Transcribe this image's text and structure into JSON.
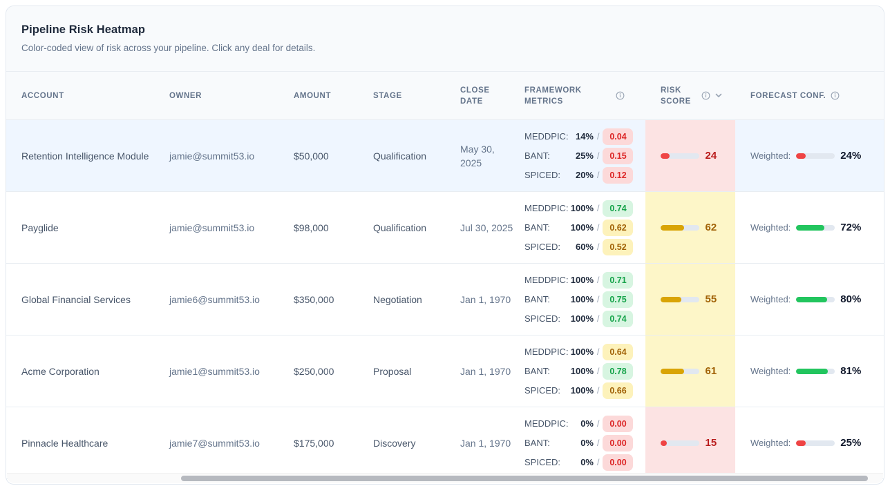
{
  "panel": {
    "title": "Pipeline Risk Heatmap",
    "subtitle": "Color-coded view of risk across your pipeline. Click any deal for details."
  },
  "table": {
    "columns": [
      {
        "id": "account",
        "label": "ACCOUNT",
        "info": false,
        "sort": false
      },
      {
        "id": "owner",
        "label": "OWNER",
        "info": false,
        "sort": false
      },
      {
        "id": "amount",
        "label": "AMOUNT",
        "info": false,
        "sort": false
      },
      {
        "id": "stage",
        "label": "STAGE",
        "info": false,
        "sort": false
      },
      {
        "id": "close_date",
        "label": "CLOSE DATE",
        "info": false,
        "sort": false
      },
      {
        "id": "framework_metrics",
        "label": "FRAMEWORK METRICS",
        "info": true,
        "sort": false
      },
      {
        "id": "risk_score",
        "label": "RISK SCORE",
        "info": true,
        "sort": true
      },
      {
        "id": "forecast_conf",
        "label": "FORECAST CONF.",
        "info": true,
        "sort": false
      }
    ],
    "rows": [
      {
        "account": "Retention Intelligence Module",
        "owner": "jamie@summit53.io",
        "amount": "$50,000",
        "stage": "Qualification",
        "close_date": "May 30, 2025",
        "selected": true,
        "metrics": [
          {
            "label": "MEDDPIC:",
            "pct": "14%",
            "score": "0.04",
            "tone": "red"
          },
          {
            "label": "BANT:",
            "pct": "25%",
            "score": "0.15",
            "tone": "red"
          },
          {
            "label": "SPICED:",
            "pct": "20%",
            "score": "0.12",
            "tone": "red"
          }
        ],
        "risk": {
          "value": 24,
          "tone": "red"
        },
        "forecast": {
          "label": "Weighted:",
          "pct": 24,
          "display": "24%",
          "tone": "red"
        }
      },
      {
        "account": "Payglide",
        "owner": "jamie@summit53.io",
        "amount": "$98,000",
        "stage": "Qualification",
        "close_date": "Jul 30, 2025",
        "selected": false,
        "metrics": [
          {
            "label": "MEDDPIC:",
            "pct": "100%",
            "score": "0.74",
            "tone": "green"
          },
          {
            "label": "BANT:",
            "pct": "100%",
            "score": "0.62",
            "tone": "yellow"
          },
          {
            "label": "SPICED:",
            "pct": "60%",
            "score": "0.52",
            "tone": "yellow"
          }
        ],
        "risk": {
          "value": 62,
          "tone": "yellow"
        },
        "forecast": {
          "label": "Weighted:",
          "pct": 72,
          "display": "72%",
          "tone": "green"
        }
      },
      {
        "account": "Global Financial Services",
        "owner": "jamie6@summit53.io",
        "amount": "$350,000",
        "stage": "Negotiation",
        "close_date": "Jan 1, 1970",
        "selected": false,
        "metrics": [
          {
            "label": "MEDDPIC:",
            "pct": "100%",
            "score": "0.71",
            "tone": "green"
          },
          {
            "label": "BANT:",
            "pct": "100%",
            "score": "0.75",
            "tone": "green"
          },
          {
            "label": "SPICED:",
            "pct": "100%",
            "score": "0.74",
            "tone": "green"
          }
        ],
        "risk": {
          "value": 55,
          "tone": "yellow"
        },
        "forecast": {
          "label": "Weighted:",
          "pct": 80,
          "display": "80%",
          "tone": "green"
        }
      },
      {
        "account": "Acme Corporation",
        "owner": "jamie1@summit53.io",
        "amount": "$250,000",
        "stage": "Proposal",
        "close_date": "Jan 1, 1970",
        "selected": false,
        "metrics": [
          {
            "label": "MEDDPIC:",
            "pct": "100%",
            "score": "0.64",
            "tone": "yellow"
          },
          {
            "label": "BANT:",
            "pct": "100%",
            "score": "0.78",
            "tone": "green"
          },
          {
            "label": "SPICED:",
            "pct": "100%",
            "score": "0.66",
            "tone": "yellow"
          }
        ],
        "risk": {
          "value": 61,
          "tone": "yellow"
        },
        "forecast": {
          "label": "Weighted:",
          "pct": 81,
          "display": "81%",
          "tone": "green"
        }
      },
      {
        "account": "Pinnacle Healthcare",
        "owner": "jamie7@summit53.io",
        "amount": "$175,000",
        "stage": "Discovery",
        "close_date": "Jan 1, 1970",
        "selected": false,
        "metrics": [
          {
            "label": "MEDDPIC:",
            "pct": "0%",
            "score": "0.00",
            "tone": "red"
          },
          {
            "label": "BANT:",
            "pct": "0%",
            "score": "0.00",
            "tone": "red"
          },
          {
            "label": "SPICED:",
            "pct": "0%",
            "score": "0.00",
            "tone": "red"
          }
        ],
        "risk": {
          "value": 15,
          "tone": "red"
        },
        "forecast": {
          "label": "Weighted:",
          "pct": 25,
          "display": "25%",
          "tone": "red"
        }
      }
    ]
  },
  "icons": {
    "header_info": "info-icon",
    "risk_sort": "chevron-down-icon"
  },
  "colors": {
    "selected_row_bg": "#eff6ff",
    "risk_cell_red_bg": "#fce3e3",
    "risk_cell_yellow_bg": "#fdf6c8",
    "bar_red": "#ef4444",
    "bar_gold": "#d9a406",
    "bar_green": "#22c55e",
    "pill_red_bg": "#fcd9d9",
    "pill_red_text": "#dc2626",
    "pill_green_bg": "#d7f5e1",
    "pill_green_text": "#16a34a",
    "pill_yellow_bg": "#fdf2bb",
    "pill_yellow_text": "#a16207"
  }
}
